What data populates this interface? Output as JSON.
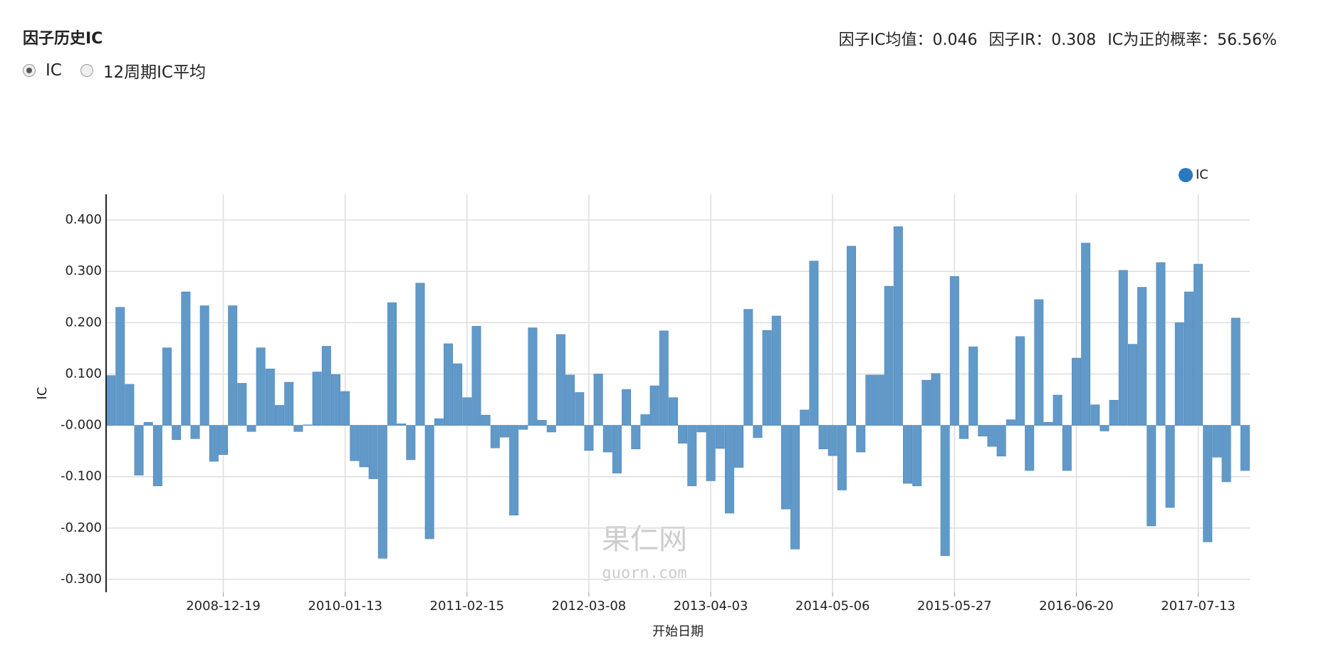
{
  "header": {
    "title": "因子历史IC",
    "radios": [
      {
        "label": "IC",
        "checked": true
      },
      {
        "label": "12周期IC平均",
        "checked": false
      }
    ],
    "stats": [
      "因子IC均值：0.046",
      "因子IR：0.308",
      "IC为正的概率：56.56%"
    ]
  },
  "watermark": {
    "name": "果仁网",
    "url": "guorn.com"
  },
  "chart_data": {
    "type": "bar",
    "x_label": "开始日期",
    "y_label": "IC",
    "categories": [
      null,
      null,
      null,
      null,
      null,
      null,
      null,
      null,
      null,
      null,
      null,
      null,
      "2008-12-19",
      null,
      null,
      null,
      null,
      null,
      null,
      null,
      null,
      null,
      null,
      null,
      null,
      "2010-01-13",
      null,
      null,
      null,
      null,
      null,
      null,
      null,
      null,
      null,
      null,
      null,
      null,
      "2011-02-15",
      null,
      null,
      null,
      null,
      null,
      null,
      null,
      null,
      null,
      null,
      null,
      null,
      "2012-03-08",
      null,
      null,
      null,
      null,
      null,
      null,
      null,
      null,
      null,
      null,
      null,
      null,
      "2013-04-03",
      null,
      null,
      null,
      null,
      null,
      null,
      null,
      null,
      null,
      null,
      null,
      null,
      "2014-05-06",
      null,
      null,
      null,
      null,
      null,
      null,
      null,
      null,
      null,
      null,
      null,
      null,
      "2015-05-27",
      null,
      null,
      null,
      null,
      null,
      null,
      null,
      null,
      null,
      null,
      null,
      null,
      "2016-06-20",
      null,
      null,
      null,
      null,
      null,
      null,
      null,
      null,
      null,
      null,
      null,
      null,
      "2017-07-13",
      null,
      null,
      null,
      null,
      null
    ],
    "series": [
      {
        "name": "IC",
        "color": "#6199c9",
        "legend_color": "#2a78c0",
        "values": [
          0.097,
          0.23,
          0.08,
          -0.097,
          0.006,
          -0.118,
          0.151,
          -0.028,
          0.26,
          -0.026,
          0.233,
          -0.07,
          -0.057,
          0.233,
          0.082,
          -0.012,
          0.151,
          0.11,
          0.039,
          0.084,
          -0.012,
          0.001,
          0.104,
          0.154,
          0.099,
          0.066,
          -0.069,
          -0.081,
          -0.104,
          -0.259,
          0.239,
          0.003,
          -0.067,
          0.277,
          -0.221,
          0.013,
          0.159,
          0.12,
          0.054,
          0.193,
          0.02,
          -0.044,
          -0.023,
          -0.175,
          -0.008,
          0.19,
          0.01,
          -0.013,
          0.177,
          0.098,
          0.064,
          -0.049,
          0.1,
          -0.052,
          -0.093,
          0.07,
          -0.046,
          0.021,
          0.077,
          0.184,
          0.054,
          -0.035,
          -0.118,
          -0.013,
          -0.108,
          -0.045,
          -0.171,
          -0.082,
          0.226,
          -0.024,
          0.185,
          0.213,
          -0.163,
          -0.241,
          0.03,
          0.32,
          -0.046,
          -0.059,
          -0.126,
          0.349,
          -0.052,
          0.098,
          0.098,
          0.271,
          0.387,
          -0.113,
          -0.118,
          0.088,
          0.101,
          -0.254,
          0.29,
          -0.026,
          0.153,
          -0.021,
          -0.041,
          -0.06,
          0.011,
          0.173,
          -0.088,
          0.245,
          0.006,
          0.059,
          -0.088,
          0.131,
          0.355,
          0.04,
          -0.011,
          0.049,
          0.302,
          0.158,
          0.269,
          -0.196,
          0.317,
          -0.16,
          0.2,
          0.26,
          0.314,
          -0.227,
          -0.062,
          -0.11,
          0.209,
          -0.088
        ]
      }
    ],
    "ylim": [
      -0.325,
      0.45
    ],
    "yticks": [
      {
        "value": -0.3,
        "label": "-0.300"
      },
      {
        "value": -0.2,
        "label": "-0.200"
      },
      {
        "value": -0.1,
        "label": "-0.100"
      },
      {
        "value": 0,
        "label": "-0.000"
      },
      {
        "value": 0.1,
        "label": "0.100"
      },
      {
        "value": 0.2,
        "label": "0.200"
      },
      {
        "value": 0.3,
        "label": "0.300"
      },
      {
        "value": 0.4,
        "label": "0.400"
      }
    ],
    "grid": true,
    "legend": "top-right"
  }
}
